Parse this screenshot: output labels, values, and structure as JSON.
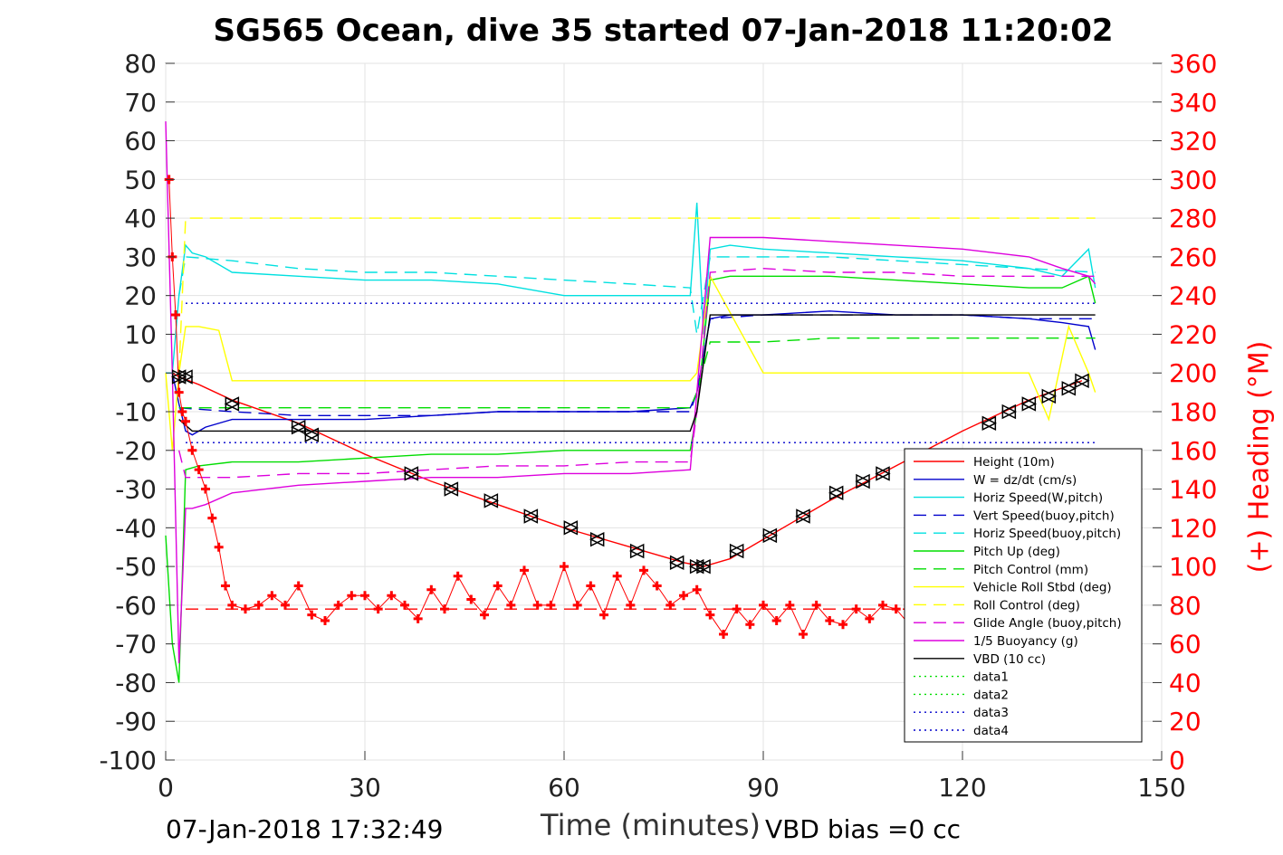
{
  "chart_data": {
    "type": "line",
    "title": "SG565 Ocean, dive 35 started 07-Jan-2018 11:20:02",
    "xlabel": "Time (minutes)",
    "ylabel": "",
    "y2label": "(+) Heading (°M)",
    "xlim": [
      0,
      150
    ],
    "ylim": [
      -100,
      80
    ],
    "y2lim": [
      0,
      360
    ],
    "xticks": [
      "0",
      "30",
      "60",
      "90",
      "120",
      "150"
    ],
    "yticks": [
      "80",
      "70",
      "60",
      "50",
      "40",
      "30",
      "20",
      "10",
      "0",
      "-10",
      "-20",
      "-30",
      "-40",
      "-50",
      "-60",
      "-70",
      "-80",
      "-90",
      "-100"
    ],
    "y2ticks": [
      "360",
      "340",
      "320",
      "300",
      "280",
      "260",
      "240",
      "220",
      "200",
      "180",
      "160",
      "140",
      "120",
      "100",
      "80",
      "60",
      "40",
      "20",
      "0"
    ],
    "grid": true,
    "legend_position": "bottom-right",
    "footer_left": "07-Jan-2018 17:32:49",
    "footer_right": "VBD bias =0 cc",
    "series": [
      {
        "name": "Height (10m)",
        "color": "#ff0000",
        "style": "solid",
        "markers": "triangles",
        "x": [
          1,
          2,
          5,
          10,
          20,
          30,
          40,
          50,
          60,
          70,
          78,
          81,
          85,
          90,
          100,
          110,
          120,
          130,
          138
        ],
        "y": [
          0,
          -1,
          -3,
          -7,
          -13,
          -21,
          -28,
          -34,
          -40,
          -45,
          -49,
          -50,
          -48,
          -43,
          -33,
          -24,
          -15,
          -7,
          -2
        ]
      },
      {
        "name": "W = dz/dt (cm/s)",
        "color": "#0000cc",
        "style": "solid",
        "x": [
          0,
          1,
          2,
          3,
          4,
          6,
          10,
          20,
          30,
          40,
          50,
          60,
          70,
          79,
          80,
          82,
          85,
          90,
          100,
          110,
          120,
          130,
          135,
          139,
          140
        ],
        "y": [
          0,
          0,
          -8,
          -15,
          -16,
          -14,
          -12,
          -12,
          -12,
          -11,
          -10,
          -10,
          -10,
          -9,
          -5,
          14,
          15,
          15,
          16,
          15,
          15,
          14,
          13,
          12,
          6
        ]
      },
      {
        "name": "Horiz Speed(W,pitch)",
        "color": "#00e0e0",
        "style": "solid",
        "x": [
          0,
          1,
          2,
          3,
          4,
          6,
          10,
          20,
          30,
          40,
          50,
          60,
          70,
          79,
          80,
          81,
          82,
          85,
          90,
          100,
          110,
          120,
          130,
          135,
          139,
          140
        ],
        "y": [
          0,
          0,
          20,
          33,
          31,
          30,
          26,
          25,
          24,
          24,
          23,
          20,
          20,
          20,
          44,
          10,
          32,
          33,
          32,
          31,
          30,
          29,
          27,
          25,
          32,
          22
        ]
      },
      {
        "name": "Vert Speed(buoy,pitch)",
        "color": "#0000cc",
        "style": "dashed",
        "x": [
          2,
          10,
          20,
          30,
          40,
          50,
          60,
          70,
          79,
          80,
          82,
          90,
          100,
          110,
          120,
          130,
          140
        ],
        "y": [
          -9,
          -10,
          -11,
          -11,
          -11,
          -10,
          -10,
          -10,
          -10,
          -5,
          14,
          15,
          15,
          15,
          15,
          14,
          14
        ]
      },
      {
        "name": "Horiz Speed(buoy,pitch)",
        "color": "#00e0e0",
        "style": "dashed",
        "x": [
          2,
          3,
          10,
          20,
          30,
          40,
          50,
          60,
          70,
          79,
          80,
          82,
          90,
          100,
          110,
          120,
          130,
          140
        ],
        "y": [
          20,
          30,
          29,
          27,
          26,
          26,
          25,
          24,
          23,
          22,
          10,
          30,
          30,
          30,
          29,
          28,
          27,
          26
        ]
      },
      {
        "name": "Pitch Up (deg)",
        "color": "#00dd00",
        "style": "solid",
        "x": [
          0,
          1,
          2,
          3,
          5,
          10,
          20,
          30,
          40,
          50,
          60,
          70,
          79,
          80,
          82,
          85,
          90,
          100,
          110,
          120,
          130,
          135,
          139,
          140
        ],
        "y": [
          -42,
          -70,
          -80,
          -25,
          -24,
          -23,
          -23,
          -22,
          -21,
          -21,
          -20,
          -20,
          -20,
          -10,
          24,
          25,
          25,
          25,
          24,
          23,
          22,
          22,
          25,
          18
        ]
      },
      {
        "name": "Pitch Control (mm)",
        "color": "#00dd00",
        "style": "dashed",
        "x": [
          2,
          10,
          20,
          30,
          40,
          50,
          60,
          70,
          79,
          80,
          82,
          90,
          100,
          110,
          120,
          130,
          140
        ],
        "y": [
          -9,
          -9,
          -9,
          -9,
          -9,
          -9,
          -9,
          -9,
          -9,
          -5,
          8,
          8,
          9,
          9,
          9,
          9,
          9
        ]
      },
      {
        "name": "Vehicle Roll Stbd (deg)",
        "color": "#ffff00",
        "style": "solid",
        "x": [
          0,
          1,
          2,
          3,
          5,
          8,
          10,
          20,
          30,
          40,
          50,
          60,
          70,
          79,
          80,
          82,
          90,
          100,
          110,
          120,
          130,
          133,
          136,
          139,
          140
        ],
        "y": [
          0,
          -20,
          0,
          12,
          12,
          11,
          -2,
          -2,
          -2,
          -2,
          -2,
          -2,
          -2,
          -2,
          0,
          25,
          0,
          0,
          0,
          0,
          0,
          -12,
          12,
          0,
          -5
        ]
      },
      {
        "name": "Roll Control (deg)",
        "color": "#ffff00",
        "style": "dashed",
        "x": [
          2,
          3,
          10,
          20,
          30,
          40,
          50,
          60,
          70,
          79,
          82,
          90,
          100,
          110,
          120,
          130,
          140
        ],
        "y": [
          0,
          40,
          40,
          40,
          40,
          40,
          40,
          40,
          40,
          40,
          40,
          40,
          40,
          40,
          40,
          40,
          40
        ]
      },
      {
        "name": "Glide Angle (buoy,pitch)",
        "color": "#dd00dd",
        "style": "dashed",
        "x": [
          2,
          3,
          10,
          20,
          30,
          40,
          50,
          60,
          70,
          79,
          80,
          82,
          90,
          100,
          110,
          120,
          130,
          140
        ],
        "y": [
          -20,
          -27,
          -27,
          -26,
          -26,
          -25,
          -24,
          -24,
          -23,
          -23,
          -10,
          26,
          27,
          26,
          26,
          25,
          25,
          25
        ]
      },
      {
        "name": "1/5 Buoyancy (g)",
        "color": "#dd00dd",
        "style": "solid",
        "x": [
          0,
          1,
          2,
          3,
          4,
          6,
          10,
          20,
          30,
          40,
          50,
          60,
          70,
          79,
          80,
          82,
          90,
          100,
          110,
          120,
          130,
          135,
          139,
          140
        ],
        "y": [
          65,
          0,
          -75,
          -35,
          -35,
          -34,
          -31,
          -29,
          -28,
          -27,
          -27,
          -26,
          -26,
          -25,
          -5,
          35,
          35,
          34,
          33,
          32,
          30,
          27,
          25,
          23
        ]
      },
      {
        "name": "VBD (10 cc)",
        "color": "#000000",
        "style": "solid",
        "x": [
          2,
          4,
          10,
          20,
          30,
          40,
          50,
          60,
          70,
          79,
          80,
          82,
          90,
          100,
          110,
          120,
          130,
          140
        ],
        "y": [
          -12,
          -15,
          -15,
          -15,
          -15,
          -15,
          -15,
          -15,
          -15,
          -15,
          -10,
          15,
          15,
          15,
          15,
          15,
          15,
          15
        ]
      },
      {
        "name": "data1",
        "color": "#00dd00",
        "style": "dotted",
        "x": [],
        "y": []
      },
      {
        "name": "data2",
        "color": "#00dd00",
        "style": "dotted",
        "x": [],
        "y": []
      },
      {
        "name": "data3",
        "color": "#0000cc",
        "style": "dotted",
        "x": [
          3,
          140
        ],
        "y": [
          18,
          18
        ]
      },
      {
        "name": "data4",
        "color": "#0000cc",
        "style": "dotted",
        "x": [
          3,
          140
        ],
        "y": [
          -18,
          -18
        ]
      }
    ],
    "extra_lines": [
      {
        "name": "heading-dash",
        "color": "#ff0000",
        "style": "dashed",
        "x": [
          3,
          140
        ],
        "y": [
          -61,
          -61
        ]
      }
    ],
    "heading_series": {
      "name": "Heading (°M)",
      "color": "#ff0000",
      "marker": "+",
      "axis": "right",
      "x": [
        0.5,
        1,
        1.5,
        2,
        2.5,
        3,
        4,
        5,
        6,
        7,
        8,
        9,
        10,
        12,
        14,
        16,
        18,
        20,
        22,
        24,
        26,
        28,
        30,
        32,
        34,
        36,
        38,
        40,
        42,
        44,
        46,
        48,
        50,
        52,
        54,
        56,
        58,
        60,
        62,
        64,
        66,
        68,
        70,
        72,
        74,
        76,
        78,
        80,
        82,
        84,
        86,
        88,
        90,
        92,
        94,
        96,
        98,
        100,
        102,
        104,
        106,
        108,
        110,
        112
      ],
      "y": [
        300,
        260,
        230,
        190,
        180,
        175,
        160,
        150,
        140,
        125,
        110,
        90,
        80,
        78,
        80,
        85,
        80,
        90,
        75,
        72,
        80,
        85,
        85,
        78,
        85,
        80,
        73,
        88,
        78,
        95,
        83,
        75,
        90,
        80,
        98,
        80,
        80,
        100,
        80,
        90,
        75,
        95,
        80,
        98,
        90,
        80,
        85,
        88,
        75,
        65,
        78,
        70,
        80,
        72,
        80,
        65,
        80,
        72,
        70,
        78,
        73,
        80,
        78,
        70
      ]
    },
    "triangle_markers": {
      "x": [
        2,
        3,
        10,
        20,
        22,
        37,
        43,
        49,
        55,
        61,
        65,
        71,
        77,
        80,
        81,
        86,
        91,
        96,
        101,
        105,
        108,
        124,
        127,
        130,
        133,
        136,
        138
      ],
      "y": [
        -1,
        -1,
        -8,
        -14,
        -16,
        -26,
        -30,
        -33,
        -37,
        -40,
        -43,
        -46,
        -49,
        -50,
        -50,
        -46,
        -42,
        -37,
        -31,
        -28,
        -26,
        -13,
        -10,
        -8,
        -6,
        -4,
        -2
      ]
    }
  }
}
